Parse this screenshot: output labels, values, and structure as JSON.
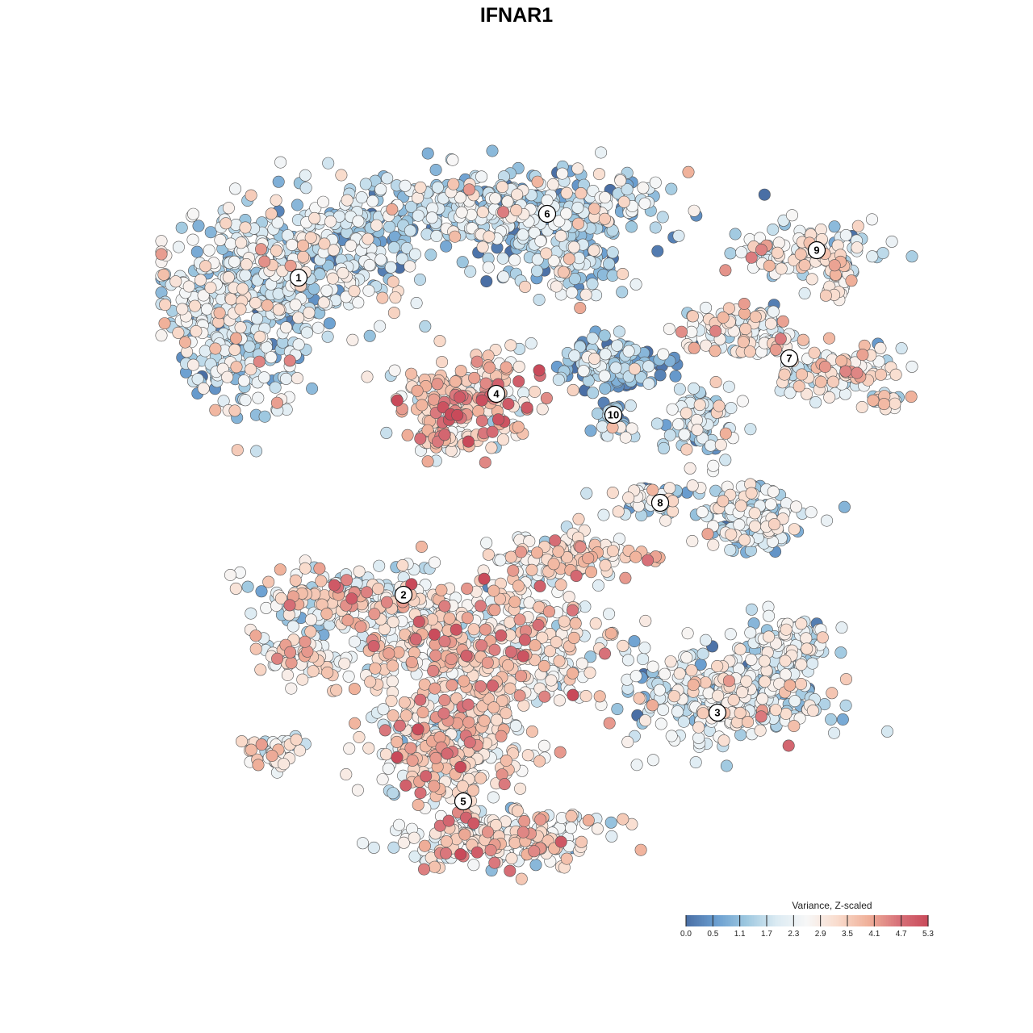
{
  "chart_data": {
    "type": "scatter",
    "title": "IFNAR1",
    "color_scale": {
      "title": "Variance, Z-scaled",
      "min": 0.0,
      "max": 5.3,
      "ticks": [
        "0.0",
        "0.5",
        "1.1",
        "1.7",
        "2.3",
        "2.9",
        "3.5",
        "4.1",
        "4.7",
        "5.3"
      ],
      "colors": [
        "#4a6fa5",
        "#6a9ed0",
        "#9ec8e0",
        "#dcebf3",
        "#f7f7f7",
        "#f9dccd",
        "#f0b19a",
        "#d8737a",
        "#c94a5a"
      ]
    },
    "clusters": [
      {
        "label": "1",
        "mean_value": 1.9
      },
      {
        "label": "2",
        "mean_value": 2.7
      },
      {
        "label": "3",
        "mean_value": 2.1
      },
      {
        "label": "4",
        "mean_value": 3.3
      },
      {
        "label": "5",
        "mean_value": 3.0
      },
      {
        "label": "6",
        "mean_value": 1.7
      },
      {
        "label": "7",
        "mean_value": 2.6
      },
      {
        "label": "8",
        "mean_value": 1.8
      },
      {
        "label": "9",
        "mean_value": 2.4
      },
      {
        "label": "10",
        "mean_value": 0.9
      }
    ]
  }
}
